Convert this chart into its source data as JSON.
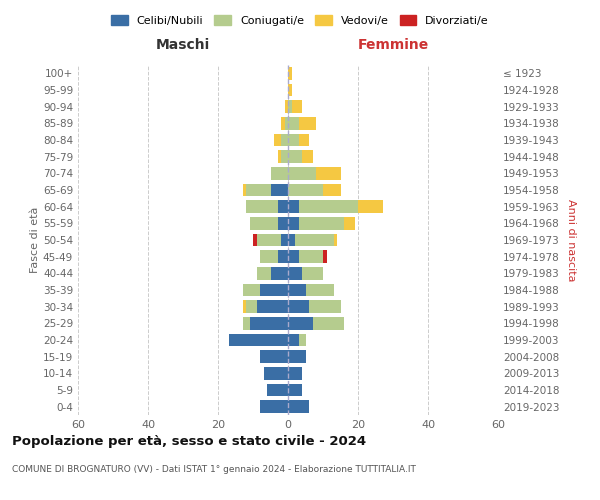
{
  "age_groups": [
    "0-4",
    "5-9",
    "10-14",
    "15-19",
    "20-24",
    "25-29",
    "30-34",
    "35-39",
    "40-44",
    "45-49",
    "50-54",
    "55-59",
    "60-64",
    "65-69",
    "70-74",
    "75-79",
    "80-84",
    "85-89",
    "90-94",
    "95-99",
    "100+"
  ],
  "birth_years": [
    "2019-2023",
    "2014-2018",
    "2009-2013",
    "2004-2008",
    "1999-2003",
    "1994-1998",
    "1989-1993",
    "1984-1988",
    "1979-1983",
    "1974-1978",
    "1969-1973",
    "1964-1968",
    "1959-1963",
    "1954-1958",
    "1949-1953",
    "1944-1948",
    "1939-1943",
    "1934-1938",
    "1929-1933",
    "1924-1928",
    "≤ 1923"
  ],
  "colors": {
    "celibi": "#3a6ea5",
    "coniugati": "#b5cc8e",
    "vedovi": "#f5c842",
    "divorziati": "#cc2222"
  },
  "males": {
    "celibi": [
      8,
      6,
      7,
      8,
      17,
      11,
      9,
      8,
      5,
      3,
      2,
      3,
      3,
      5,
      0,
      0,
      0,
      0,
      0,
      0,
      0
    ],
    "coniugati": [
      0,
      0,
      0,
      0,
      0,
      2,
      3,
      5,
      4,
      5,
      7,
      8,
      9,
      7,
      5,
      2,
      2,
      1,
      0,
      0,
      0
    ],
    "vedovi": [
      0,
      0,
      0,
      0,
      0,
      0,
      1,
      0,
      0,
      0,
      0,
      0,
      0,
      1,
      0,
      1,
      2,
      1,
      1,
      0,
      0
    ],
    "divorziati": [
      0,
      0,
      0,
      0,
      0,
      0,
      0,
      0,
      0,
      0,
      1,
      0,
      0,
      0,
      0,
      0,
      0,
      0,
      0,
      0,
      0
    ]
  },
  "females": {
    "celibi": [
      6,
      4,
      4,
      5,
      3,
      7,
      6,
      5,
      4,
      3,
      2,
      3,
      3,
      0,
      0,
      0,
      0,
      0,
      0,
      0,
      0
    ],
    "coniugati": [
      0,
      0,
      0,
      0,
      2,
      9,
      9,
      8,
      6,
      7,
      11,
      13,
      17,
      10,
      8,
      4,
      3,
      3,
      1,
      0,
      0
    ],
    "vedovi": [
      0,
      0,
      0,
      0,
      0,
      0,
      0,
      0,
      0,
      0,
      1,
      3,
      7,
      5,
      7,
      3,
      3,
      5,
      3,
      1,
      1
    ],
    "divorziati": [
      0,
      0,
      0,
      0,
      0,
      0,
      0,
      0,
      0,
      1,
      0,
      0,
      0,
      0,
      0,
      0,
      0,
      0,
      0,
      0,
      0
    ]
  },
  "xlim": 60,
  "title": "Popolazione per età, sesso e stato civile - 2024",
  "subtitle": "COMUNE DI BROGNATURO (VV) - Dati ISTAT 1° gennaio 2024 - Elaborazione TUTTITALIA.IT",
  "xlabel_left": "Maschi",
  "xlabel_right": "Femmine",
  "ylabel_left": "Fasce di età",
  "ylabel_right": "Anni di nascita",
  "legend_labels": [
    "Celibi/Nubili",
    "Coniugati/e",
    "Vedovi/e",
    "Divorziati/e"
  ],
  "background_color": "#ffffff",
  "grid_color": "#cccccc"
}
